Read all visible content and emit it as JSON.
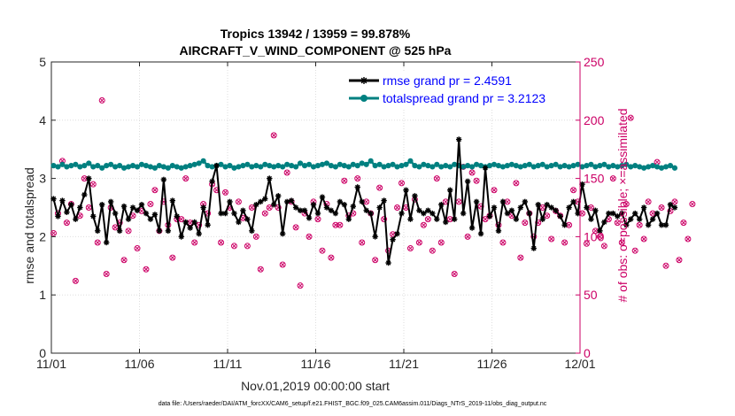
{
  "chart_data": {
    "type": "line",
    "title": "Tropics 13942 / 13959 = 99.878%",
    "subtitle": "AIRCRAFT_V_WIND_COMPONENT @ 525 hPa",
    "xlabel": "Nov.01,2019 00:00:00 start",
    "ylabel": "rmse and totalspread",
    "ylabel_right": "# of obs: o=possible; ×=assimilated",
    "footnote": "data file: /Users/raeder/DAI/ATM_forcXX/CAM6_setup/f.e21.FHIST_BGC.f09_025.CAM6assim.011/Diags_NTrS_2019-11/obs_diag_output.nc",
    "xlim": [
      0,
      30
    ],
    "ylim": [
      0,
      5
    ],
    "ylim_right": [
      0,
      250
    ],
    "x_ticks": [
      0,
      5,
      10,
      15,
      20,
      25,
      30
    ],
    "x_tick_labels": [
      "11/01",
      "11/06",
      "11/11",
      "11/16",
      "11/21",
      "11/26",
      "12/01"
    ],
    "y_ticks": [
      0,
      1,
      2,
      3,
      4,
      5
    ],
    "y_tick_labels": [
      "0",
      "1",
      "2",
      "3",
      "4",
      "5"
    ],
    "y_right_ticks": [
      0,
      50,
      100,
      150,
      200,
      250
    ],
    "y_right_tick_labels": [
      "0",
      "50",
      "100",
      "150",
      "200",
      "250"
    ],
    "legend_position": "top-right",
    "grid": true,
    "x_step_days": 0.25,
    "series": [
      {
        "name": "rmse grand pr = 2.4591",
        "color": "#000000",
        "marker": "star",
        "axis": "left",
        "values": [
          2.65,
          2.35,
          2.62,
          2.42,
          2.55,
          2.3,
          2.5,
          2.72,
          3.0,
          2.35,
          2.1,
          2.55,
          1.9,
          2.6,
          2.4,
          2.1,
          2.52,
          2.3,
          2.5,
          2.45,
          2.55,
          2.4,
          2.3,
          2.38,
          2.1,
          2.98,
          2.1,
          2.62,
          2.35,
          2.0,
          2.25,
          2.15,
          2.25,
          2.05,
          2.5,
          2.2,
          2.95,
          3.22,
          2.4,
          2.4,
          2.6,
          2.4,
          2.25,
          2.45,
          2.3,
          2.1,
          2.55,
          2.6,
          2.65,
          3.0,
          2.55,
          2.7,
          2.05,
          2.6,
          2.62,
          2.5,
          2.45,
          2.45,
          2.32,
          2.55,
          2.4,
          2.68,
          2.5,
          2.45,
          2.4,
          2.6,
          2.55,
          2.3,
          2.52,
          2.85,
          2.6,
          2.45,
          2.4,
          2.0,
          2.5,
          2.62,
          1.55,
          1.95,
          2.05,
          2.4,
          2.8,
          2.3,
          2.7,
          2.45,
          2.4,
          2.45,
          2.4,
          2.3,
          2.55,
          2.25,
          2.8,
          2.3,
          3.67,
          2.4,
          2.95,
          2.15,
          2.6,
          2.05,
          3.18,
          2.35,
          2.5,
          2.1,
          2.6,
          2.4,
          2.45,
          2.3,
          2.5,
          2.6,
          2.4,
          1.8,
          2.55,
          2.3,
          2.55,
          2.5,
          2.45,
          2.35,
          2.2,
          2.5,
          2.6,
          2.4,
          2.9,
          2.5,
          2.3,
          2.45,
          2.1,
          2.25,
          2.4,
          2.4,
          2.35,
          2.4,
          2.2,
          2.3,
          2.4,
          2.3,
          2.5,
          2.2,
          2.3,
          2.4,
          2.2,
          2.2,
          2.55,
          2.5
        ]
      },
      {
        "name": "totalspread grand pr = 3.2123",
        "color": "#008080",
        "marker": "circle",
        "axis": "left",
        "values": [
          3.22,
          3.2,
          3.24,
          3.2,
          3.22,
          3.24,
          3.2,
          3.22,
          3.26,
          3.2,
          3.22,
          3.18,
          3.22,
          3.24,
          3.2,
          3.22,
          3.18,
          3.2,
          3.22,
          3.2,
          3.24,
          3.22,
          3.2,
          3.18,
          3.22,
          3.2,
          3.18,
          3.22,
          3.2,
          3.18,
          3.2,
          3.22,
          3.24,
          3.26,
          3.3,
          3.22,
          3.2,
          3.22,
          3.24,
          3.2,
          3.22,
          3.18,
          3.2,
          3.22,
          3.24,
          3.2,
          3.22,
          3.2,
          3.24,
          3.22,
          3.2,
          3.22,
          3.2,
          3.24,
          3.22,
          3.2,
          3.26,
          3.22,
          3.24,
          3.2,
          3.22,
          3.24,
          3.26,
          3.22,
          3.2,
          3.24,
          3.22,
          3.2,
          3.24,
          3.22,
          3.26,
          3.24,
          3.3,
          3.22,
          3.24,
          3.2,
          3.22,
          3.24,
          3.2,
          3.22,
          3.24,
          3.3,
          3.22,
          3.2,
          3.24,
          3.22,
          3.2,
          3.24,
          3.2,
          3.22,
          3.2,
          3.24,
          3.22,
          3.2,
          3.22,
          3.2,
          3.24,
          3.22,
          3.2,
          3.22,
          3.24,
          3.22,
          3.2,
          3.22,
          3.24,
          3.22,
          3.2,
          3.22,
          3.24,
          3.2,
          3.22,
          3.24,
          3.2,
          3.22,
          3.24,
          3.2,
          3.22,
          3.2,
          3.22,
          3.24,
          3.2,
          3.22,
          3.24,
          3.2,
          3.22,
          3.24,
          3.2,
          3.22,
          3.2,
          3.22,
          3.24,
          3.2,
          3.22,
          3.2,
          3.18,
          3.2,
          3.22,
          3.2,
          3.18,
          3.2,
          3.22,
          3.18
        ]
      },
      {
        "name": "# of obs possible",
        "color": "#cc0066",
        "marker": "open-circle",
        "axis": "right",
        "values": [
          103,
          120,
          165,
          112,
          128,
          62,
          118,
          150,
          125,
          145,
          95,
          217,
          68,
          125,
          108,
          112,
          80,
          105,
          118,
          90,
          122,
          72,
          128,
          140,
          105,
          130,
          110,
          82,
          115,
          115,
          150,
          112,
          95,
          110,
          128,
          120,
          145,
          140,
          95,
          138,
          125,
          92,
          130,
          116,
          92,
          125,
          100,
          72,
          120,
          125,
          187,
          125,
          76,
          155,
          130,
          108,
          58,
          120,
          100,
          130,
          115,
          88,
          128,
          82,
          110,
          110,
          148,
          118,
          120,
          150,
          95,
          130,
          120,
          80,
          142,
          115,
          88,
          102,
          125,
          146,
          125,
          90,
          132,
          95,
          110,
          115,
          88,
          150,
          95,
          130,
          115,
          68,
          130,
          160,
          100,
          155,
          148,
          126,
          115,
          118,
          140,
          110,
          95,
          130,
          118,
          146,
          82,
          112,
          120,
          100,
          112,
          125,
          118,
          98,
          122,
          118,
          95,
          110,
          140,
          130,
          120,
          94,
          125,
          105,
          100,
          92,
          115,
          150,
          112,
          95,
          128,
          202,
          88,
          110,
          98,
          130,
          120,
          164,
          125,
          75,
          122,
          130,
          80,
          112,
          98,
          128
        ]
      }
    ]
  }
}
